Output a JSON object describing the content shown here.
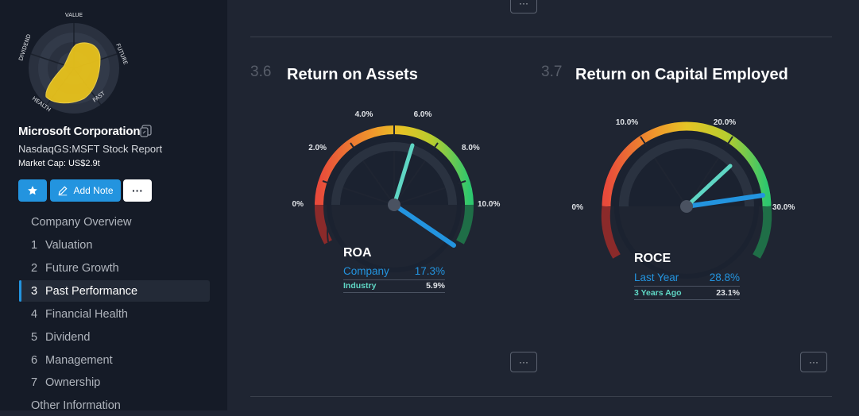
{
  "company": {
    "name": "Microsoft Corporation",
    "report": "NasdaqGS:MSFT Stock Report",
    "market_cap": "Market Cap: US$2.9t"
  },
  "snowflake": {
    "labels": {
      "value": "VALUE",
      "future": "FUTURE",
      "past": "PAST",
      "health": "HEALTH",
      "dividend": "DIVIDEND"
    },
    "fill_color": "#e8c21c"
  },
  "actions": {
    "star_icon": "star-icon",
    "add_note": "Add Note",
    "more": "···"
  },
  "nav": {
    "overview": "Company Overview",
    "items": [
      {
        "num": "1",
        "label": "Valuation"
      },
      {
        "num": "2",
        "label": "Future Growth"
      },
      {
        "num": "3",
        "label": "Past Performance"
      },
      {
        "num": "4",
        "label": "Financial Health"
      },
      {
        "num": "5",
        "label": "Dividend"
      },
      {
        "num": "6",
        "label": "Management"
      },
      {
        "num": "7",
        "label": "Ownership"
      }
    ],
    "other": "Other Information",
    "active_index": 2
  },
  "main": {
    "more": "···",
    "roa": {
      "section_num": "3.6",
      "title": "Return on Assets",
      "metric": "ROA",
      "ticks": [
        "0%",
        "2.0%",
        "4.0%",
        "6.0%",
        "8.0%",
        "10.0%"
      ],
      "company_label": "Company",
      "company_value": "17.3%",
      "industry_label": "Industry",
      "industry_value": "5.9%"
    },
    "roce": {
      "section_num": "3.7",
      "title": "Return on Capital Employed",
      "metric": "ROCE",
      "ticks": [
        "0%",
        "10.0%",
        "20.0%",
        "30.0%"
      ],
      "last_year_label": "Last Year",
      "last_year_value": "28.8%",
      "three_years_label": "3 Years Ago",
      "three_years_value": "23.1%"
    },
    "colors": {
      "primary": "#2394df",
      "secondary": "#5fd6c4",
      "snowflake": "#e8c21c"
    }
  }
}
